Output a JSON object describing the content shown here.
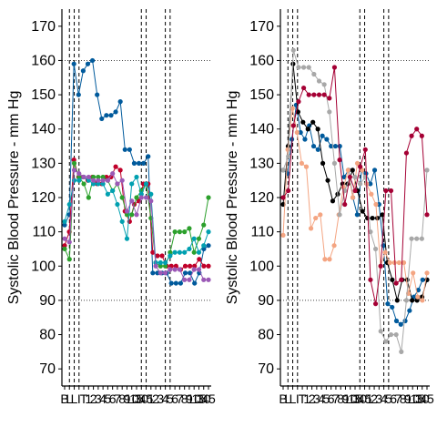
{
  "chart_data": [
    {
      "type": "line",
      "title": "",
      "xlabel": "",
      "ylabel": "Systolic Blood Pressure - mm Hg",
      "ylim": [
        65,
        175
      ],
      "y_ticks": [
        70,
        80,
        90,
        100,
        110,
        120,
        130,
        140,
        150,
        160,
        170
      ],
      "x_ticks_visible": [
        "B",
        "L",
        "L",
        "I",
        "T",
        "1",
        "2",
        "3",
        "4",
        "5",
        "6",
        "7",
        "8",
        "9",
        "10",
        "15",
        "30",
        "45",
        "1",
        "2",
        "3",
        "4",
        "5",
        "6",
        "7",
        "8",
        "9",
        "10",
        "15",
        "30",
        "45"
      ],
      "reference_hlines": [
        90,
        160
      ],
      "event_vlines": [
        1,
        2,
        3,
        16,
        17,
        21,
        22
      ],
      "grid": false,
      "series": [
        {
          "color": "#005a9c",
          "values": [
            112,
            115,
            159,
            150,
            157,
            159,
            160,
            150,
            143,
            144,
            144,
            145,
            148,
            134,
            134,
            130,
            130,
            130,
            132,
            98,
            98,
            98,
            98,
            95,
            95,
            95,
            98,
            98,
            95,
            98,
            105,
            106
          ]
        },
        {
          "color": "#c0002a",
          "values": [
            106,
            110,
            131,
            126,
            126,
            125,
            126,
            124,
            124,
            126,
            126,
            129,
            128,
            116,
            113,
            118,
            119,
            124,
            124,
            104,
            103,
            103,
            100,
            100,
            100,
            99,
            100,
            100,
            100,
            102,
            100,
            100
          ]
        },
        {
          "color": "#2ca02c",
          "values": [
            105,
            102,
            130,
            126,
            124,
            120,
            126,
            126,
            126,
            125,
            122,
            124,
            120,
            115,
            115,
            120,
            122,
            124,
            114,
            101,
            100,
            100,
            104,
            110,
            110,
            110,
            111,
            104,
            108,
            112,
            120
          ]
        },
        {
          "color": "#00a0b0",
          "values": [
            113,
            118,
            125,
            125,
            126,
            125,
            124,
            124,
            124,
            121,
            122,
            118,
            113,
            108,
            124,
            126,
            121,
            124,
            121,
            101,
            101,
            101,
            103,
            104,
            104,
            104,
            105,
            108,
            104,
            106,
            110
          ]
        },
        {
          "color": "#9b59b6",
          "values": [
            108,
            107,
            128,
            127,
            126,
            126,
            125,
            125,
            125,
            125,
            127,
            124,
            125,
            116,
            119,
            115,
            120,
            120,
            119,
            100,
            98,
            98,
            99,
            99,
            99,
            96,
            96,
            99,
            99,
            96,
            96
          ]
        }
      ]
    },
    {
      "type": "line",
      "title": "",
      "xlabel": "",
      "ylabel": "Systolic Blood Pressure - mm Hg",
      "ylim": [
        65,
        175
      ],
      "y_ticks": [
        70,
        80,
        90,
        100,
        110,
        120,
        130,
        140,
        150,
        160,
        170
      ],
      "x_ticks_visible": [
        "B",
        "L",
        "L",
        "I",
        "T",
        "1",
        "2",
        "3",
        "4",
        "5",
        "6",
        "7",
        "8",
        "9",
        "10",
        "15",
        "30",
        "45",
        "1",
        "2",
        "3",
        "4",
        "5",
        "6",
        "7",
        "8",
        "9",
        "10",
        "15",
        "30",
        "45"
      ],
      "reference_hlines": [
        90,
        160
      ],
      "event_vlines": [
        1,
        2,
        3,
        16,
        17,
        21,
        22
      ],
      "grid": false,
      "series": [
        {
          "color": "#005a9c",
          "values": [
            128,
            127,
            137,
            147,
            139,
            137,
            141,
            135,
            134,
            138,
            137,
            135,
            135,
            135,
            126,
            128,
            120,
            115,
            128,
            127,
            124,
            128,
            118,
            106,
            89,
            88,
            84,
            83,
            84,
            87,
            91,
            93,
            96,
            96
          ]
        },
        {
          "color": "#000000",
          "values": [
            118,
            135,
            159,
            145,
            142,
            140,
            142,
            140,
            130,
            125,
            119,
            121,
            124,
            124,
            128,
            122,
            116,
            114,
            114,
            114,
            115,
            101,
            96,
            90,
            96,
            96,
            90,
            90,
            91,
            96
          ]
        },
        {
          "color": "#f4a582",
          "values": [
            109,
            134,
            146,
            139,
            130,
            129,
            111,
            114,
            115,
            102,
            102,
            106,
            115,
            123,
            128,
            120,
            130,
            128,
            124,
            121,
            118,
            100,
            104,
            101,
            101,
            101,
            101,
            92,
            98,
            91,
            90,
            98
          ]
        },
        {
          "color": "#a8a8a8",
          "values": [
            128,
            132,
            163,
            158,
            158,
            158,
            156,
            154,
            153,
            145,
            130,
            115,
            122,
            126,
            126,
            124,
            126,
            110,
            105,
            81,
            78,
            80,
            80,
            75,
            90,
            108,
            108,
            108,
            128
          ]
        },
        {
          "color": "#a50034",
          "values": [
            120,
            122,
            141,
            148,
            152,
            150,
            150,
            150,
            150,
            149,
            158,
            131,
            118,
            126,
            122,
            129,
            134,
            96,
            89,
            100,
            122,
            122,
            95,
            96,
            133,
            138,
            140,
            138,
            115
          ]
        }
      ]
    }
  ]
}
